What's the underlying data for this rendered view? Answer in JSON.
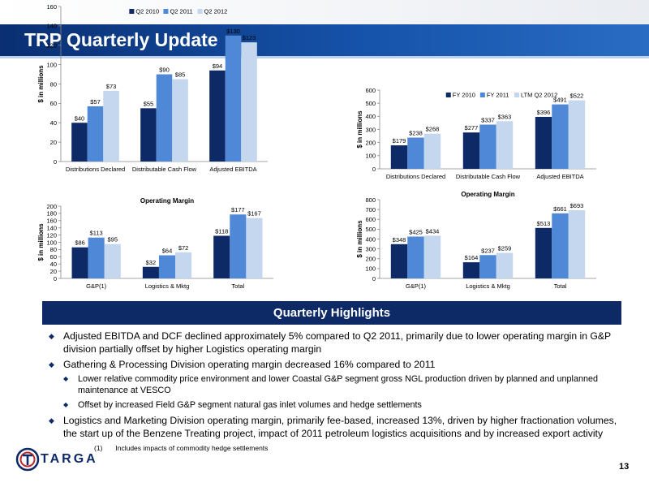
{
  "title": "TRP Quarterly Update",
  "highlights_header": "Quarterly Highlights",
  "bullets": [
    {
      "text": "Adjusted EBITDA and DCF declined approximately 5% compared to Q2 2011, primarily due to lower operating margin in G&P division partially offset by higher Logistics operating margin"
    },
    {
      "text": "Gathering & Processing Division operating margin decreased 16% compared to 2011",
      "sub": [
        "Lower relative commodity price environment and lower Coastal G&P segment gross NGL production driven by planned and unplanned maintenance at VESCO",
        "Offset by increased Field G&P segment natural gas inlet volumes and hedge settlements"
      ]
    },
    {
      "text": "Logistics and Marketing Division operating margin, primarily fee-based, increased 13%, driven by higher fractionation volumes, the start up of the Benzene Treating project, impact of 2011 petroleum logistics acquisitions and by increased export activity"
    }
  ],
  "footnote": {
    "num": "(1)",
    "text": "Includes impacts of commodity hedge settlements"
  },
  "logo_text": "TARGA",
  "page_number": "13",
  "colors": {
    "series1": "#0e2a66",
    "series2": "#4f88d6",
    "series3": "#c4d7ef"
  },
  "chart_data": [
    {
      "type": "bar",
      "title": "",
      "ylabel": "$ in millions",
      "ylim": [
        0,
        160
      ],
      "yticks": [
        0,
        20,
        40,
        60,
        80,
        100,
        120,
        140,
        160
      ],
      "categories": [
        "Distributions Declared",
        "Distributable Cash Flow",
        "Adjusted EBITDA"
      ],
      "legend_position": "top",
      "series": [
        {
          "name": "Q2 2010",
          "values": [
            40,
            55,
            94
          ],
          "labels": [
            "$40",
            "$55",
            "$94"
          ]
        },
        {
          "name": "Q2 2011",
          "values": [
            57,
            90,
            130
          ],
          "labels": [
            "$57",
            "$90",
            "$130"
          ]
        },
        {
          "name": "Q2 2012",
          "values": [
            73,
            85,
            123
          ],
          "labels": [
            "$73",
            "$85",
            "$123"
          ]
        }
      ]
    },
    {
      "type": "bar",
      "title": "",
      "ylabel": "$ in millions",
      "ylim": [
        0,
        600
      ],
      "yticks": [
        0,
        100,
        200,
        300,
        400,
        500,
        600
      ],
      "categories": [
        "Distributions Declared",
        "Distributable Cash Flow",
        "Adjusted EBITDA"
      ],
      "legend_position": "top",
      "series": [
        {
          "name": "FY 2010",
          "values": [
            179,
            277,
            396
          ],
          "labels": [
            "$179",
            "$277",
            "$396"
          ]
        },
        {
          "name": "FY 2011",
          "values": [
            238,
            337,
            491
          ],
          "labels": [
            "$238",
            "$337",
            "$491"
          ]
        },
        {
          "name": "LTM Q2 2012",
          "values": [
            268,
            363,
            522
          ],
          "labels": [
            "$268",
            "$363",
            "$522"
          ]
        }
      ]
    },
    {
      "type": "bar",
      "title": "Operating Margin",
      "ylabel": "$ in millions",
      "ylim": [
        0,
        200
      ],
      "yticks": [
        0,
        20,
        40,
        60,
        80,
        100,
        120,
        140,
        160,
        180,
        200
      ],
      "categories": [
        "G&P(1)",
        "Logistics & Mktg",
        "Total"
      ],
      "legend_position": "none",
      "series": [
        {
          "name": "",
          "values": [
            86,
            32,
            118
          ],
          "labels": [
            "$86",
            "$32",
            "$118"
          ]
        },
        {
          "name": "",
          "values": [
            113,
            64,
            177
          ],
          "labels": [
            "$113",
            "$64",
            "$177"
          ]
        },
        {
          "name": "",
          "values": [
            95,
            72,
            167
          ],
          "labels": [
            "$95",
            "$72",
            "$167"
          ]
        }
      ]
    },
    {
      "type": "bar",
      "title": "Operating Margin",
      "ylabel": "$ in millions",
      "ylim": [
        0,
        800
      ],
      "yticks": [
        0,
        100,
        200,
        300,
        400,
        500,
        600,
        700,
        800
      ],
      "categories": [
        "G&P(1)",
        "Logistics & Mktg",
        "Total"
      ],
      "legend_position": "none",
      "series": [
        {
          "name": "",
          "values": [
            348,
            164,
            513
          ],
          "labels": [
            "$348",
            "$164",
            "$513"
          ]
        },
        {
          "name": "",
          "values": [
            425,
            237,
            661
          ],
          "labels": [
            "$425",
            "$237",
            "$661"
          ]
        },
        {
          "name": "",
          "values": [
            434,
            259,
            693
          ],
          "labels": [
            "$434",
            "$259",
            "$693"
          ]
        }
      ]
    }
  ]
}
